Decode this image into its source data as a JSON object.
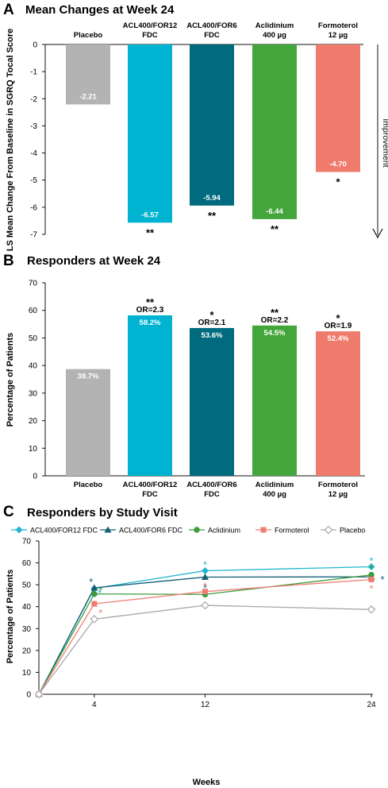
{
  "chart_data": [
    {
      "panel_letter": "A",
      "type": "bar",
      "title": "Mean Changes at Week 24",
      "ylabel": "LS Mean Change From Baseline in SGRQ Tocal Score",
      "ylim": [
        -7,
        0
      ],
      "yticks": [
        0,
        -1,
        -2,
        -3,
        -4,
        -5,
        -6,
        -7
      ],
      "ytick_labels": [
        "0",
        "-1",
        "-2",
        "-3",
        "-4",
        "-5",
        "-6",
        "-7"
      ],
      "arrow_label": "Improvement",
      "categories": [
        {
          "line1": "Placebo",
          "line2": ""
        },
        {
          "line1": "ACL400/FOR12",
          "line2": "FDC"
        },
        {
          "line1": "ACL400/FOR6",
          "line2": "FDC"
        },
        {
          "line1": "Aclidinium",
          "line2": "400 µg"
        },
        {
          "line1": "Formoterol",
          "line2": "12 µg"
        }
      ],
      "values": [
        -2.21,
        -6.57,
        -5.94,
        -6.44,
        -4.7
      ],
      "value_labels": [
        "-2.21",
        "-6.57",
        "-5.94",
        "-6.44",
        "-4.70"
      ],
      "significance": [
        "",
        "**",
        "**",
        "**",
        "*"
      ],
      "colors": [
        "#b3b3b3",
        "#00b4d1",
        "#006a7e",
        "#43a63b",
        "#ef7b6c"
      ]
    },
    {
      "panel_letter": "B",
      "type": "bar",
      "title": "Responders at Week 24",
      "ylabel": "Percentage of Patients",
      "ylim": [
        0,
        70
      ],
      "yticks": [
        0,
        10,
        20,
        30,
        40,
        50,
        60,
        70
      ],
      "ytick_labels": [
        "0",
        "10",
        "20",
        "30",
        "40",
        "50",
        "60",
        "70"
      ],
      "categories": [
        {
          "line1": "Placebo",
          "line2": ""
        },
        {
          "line1": "ACL400/FOR12",
          "line2": "FDC"
        },
        {
          "line1": "ACL400/FOR6",
          "line2": "FDC"
        },
        {
          "line1": "Aclidinium",
          "line2": "400 µg"
        },
        {
          "line1": "Formoterol",
          "line2": "12 µg"
        }
      ],
      "values": [
        38.7,
        58.2,
        53.6,
        54.5,
        52.4
      ],
      "value_labels": [
        "38.7%",
        "58.2%",
        "53.6%",
        "54.5%",
        "52.4%"
      ],
      "significance": [
        "",
        "**",
        "*",
        "**",
        "*"
      ],
      "odds_ratios": [
        "",
        "OR=2.3",
        "OR=2.1",
        "OR=2.2",
        "OR=1.9"
      ],
      "colors": [
        "#b3b3b3",
        "#00b4d1",
        "#006a7e",
        "#43a63b",
        "#ef7b6c"
      ]
    },
    {
      "panel_letter": "C",
      "type": "line",
      "title": "Responders by Study Visit",
      "xlabel": "Weeks",
      "ylabel": "Percentage of Patients",
      "ylim": [
        0,
        70
      ],
      "yticks": [
        0,
        10,
        20,
        30,
        40,
        50,
        60,
        70
      ],
      "ytick_labels": [
        "0",
        "10",
        "20",
        "30",
        "40",
        "50",
        "60",
        "70"
      ],
      "x": [
        0,
        4,
        12,
        24
      ],
      "xticks": [
        4,
        12,
        24
      ],
      "xtick_labels": [
        "4",
        "12",
        "24"
      ],
      "series": [
        {
          "name": "ACL400/FOR12 FDC",
          "values": [
            0,
            48.3,
            56.4,
            58.2
          ],
          "color": "#22b5cf",
          "marker": "diamond",
          "significance": [
            "",
            "*",
            "*",
            "*"
          ]
        },
        {
          "name": "ACL400/FOR6 FDC",
          "values": [
            0,
            48.6,
            53.5,
            53.6
          ],
          "color": "#145f76",
          "marker": "triangle",
          "significance": [
            "",
            "*",
            "*",
            "*"
          ]
        },
        {
          "name": "Aclidinium",
          "values": [
            0,
            45.8,
            45.6,
            54.5
          ],
          "color": "#3d9c3e",
          "marker": "circle",
          "significance": [
            "",
            "*",
            "",
            "*"
          ]
        },
        {
          "name": "Formoterol",
          "values": [
            0,
            41.3,
            46.9,
            52.4
          ],
          "color": "#ee7d73",
          "marker": "square",
          "significance": [
            "",
            "*",
            "*",
            "*"
          ]
        },
        {
          "name": "Placebo",
          "values": [
            0,
            34.3,
            40.6,
            38.7
          ],
          "color": "#a7a7a7",
          "marker": "open-diamond",
          "significance": [
            "",
            "",
            "",
            ""
          ]
        }
      ]
    }
  ]
}
